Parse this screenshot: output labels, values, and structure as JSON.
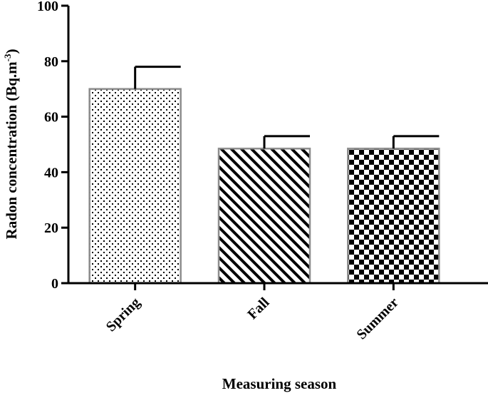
{
  "chart_data": {
    "type": "bar",
    "categories": [
      "Spring",
      "Fall",
      "Summer"
    ],
    "values": [
      70,
      48.5,
      48.5
    ],
    "errors": [
      8,
      4.5,
      4.5
    ],
    "patterns": [
      "dots",
      "diagonal-stripes",
      "checkerboard"
    ],
    "title": "",
    "xlabel": "Measuring season",
    "ylabel_main": "Radon concentration (Bq.m",
    "ylabel_sup": "-3",
    "ylabel_close": ")",
    "ylim": [
      0,
      100
    ],
    "yticks": [
      0,
      20,
      40,
      60,
      80,
      100
    ],
    "grid": false,
    "colors": {
      "axis": "#000000",
      "bar_outline": "#8c8c8c",
      "fill": "#000000"
    }
  }
}
